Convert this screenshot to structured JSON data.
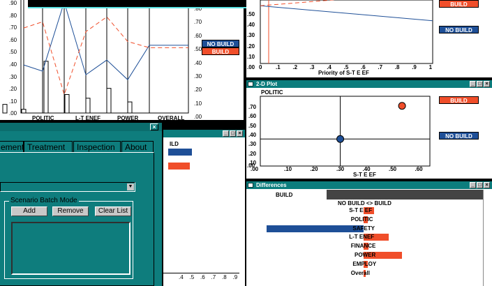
{
  "windows": {
    "top_left_chart": {
      "left_ticks": [
        ".90",
        ".80",
        ".70",
        ".60",
        ".50",
        ".40",
        ".30",
        ".20",
        ".10",
        ".00"
      ],
      "right_ticks": [
        ".80",
        ".70",
        ".60",
        ".50",
        ".40",
        ".30",
        ".20",
        ".10",
        ".00"
      ],
      "x_labels": [
        "POLITIC",
        "L-T ENEF",
        "POWER",
        "OVERALL"
      ],
      "legend": {
        "no_build": "NO BUILD",
        "build": "BUILD"
      }
    },
    "sensitivity": {
      "xlabel": "Priority of S-T E EF",
      "y_ticks": [
        ".50",
        ".40",
        ".30",
        ".20",
        ".10",
        ".00"
      ],
      "x_ticks": [
        ".1",
        ".2",
        ".3",
        ".4",
        ".5",
        ".6",
        ".7",
        ".8",
        ".9",
        "1"
      ],
      "x_zero": "0",
      "legend": {
        "build": "BUILD",
        "no_build": "NO BUILD"
      }
    },
    "plot2d": {
      "title": "2-D Plot",
      "ylabel": "POLITIC",
      "xlabel": "S-T E EF",
      "y_ticks": [
        ".70",
        ".60",
        ".50",
        ".40",
        ".30",
        ".20",
        ".10"
      ],
      "x_zero": ".00",
      "y_zero": ".00",
      "x_ticks": [
        ".10",
        ".20",
        ".30",
        ".40",
        ".50",
        ".60"
      ],
      "legend": {
        "build": "BUILD",
        "no_build": "NO BUILD"
      }
    },
    "middle_chart": {
      "header_text": "ILD",
      "x_ticks": [
        ".4",
        ".5",
        ".6",
        ".7",
        ".8",
        ".9"
      ]
    },
    "differences": {
      "title": "Differences",
      "left_header": "BUILD",
      "axis_header": "NO BUILD <> BUILD",
      "rows": [
        "S-T E EF",
        "POLITIC",
        "SAFETY",
        "L-T ENEF",
        "FINANCE",
        "POWER",
        "EMPLOY",
        "Overall"
      ]
    },
    "dialog": {
      "close_glyph": "×",
      "tabs": [
        "ement",
        "Treatment",
        "Inspection",
        "About"
      ],
      "batch_legend": "Scenario Batch Mode",
      "buttons": {
        "add": "Add",
        "remove": "Remove",
        "clear": "Clear List"
      }
    }
  },
  "chart_data": [
    {
      "type": "bar",
      "categories": [
        "POLITIC",
        "",
        "L-T ENEF",
        "",
        "POWER",
        "",
        "OVERALL"
      ],
      "series": [
        {
          "name": "NO BUILD",
          "values": [
            0.39,
            0.34,
            0.9,
            0.31,
            0.43,
            0.27,
            0.55
          ]
        },
        {
          "name": "BUILD",
          "values": [
            0.69,
            0.74,
            0.15,
            0.66,
            0.78,
            0.58,
            0.53
          ]
        }
      ],
      "ylim": [
        0,
        0.9
      ]
    },
    {
      "type": "line",
      "xlabel": "Priority of S-T E EF",
      "x": [
        0,
        1
      ],
      "series": [
        {
          "name": "NO BUILD",
          "values": [
            0.5,
            0.37
          ]
        },
        {
          "name": "BUILD",
          "values": [
            0.5,
            0.62
          ]
        }
      ],
      "xlim": [
        0,
        1
      ],
      "ylim": [
        0,
        0.55
      ]
    },
    {
      "type": "scatter",
      "xlabel": "S-T E EF",
      "ylabel": "POLITIC",
      "series": [
        {
          "name": "BUILD",
          "x": [
            0.585
          ],
          "y": [
            0.69
          ]
        },
        {
          "name": "NO BUILD",
          "x": [
            0.33
          ],
          "y": [
            0.31
          ]
        }
      ],
      "xlim": [
        0,
        0.7
      ],
      "ylim": [
        0,
        0.8
      ]
    },
    {
      "type": "bar",
      "title": "Differences",
      "categories": [
        "S-T E EF",
        "POLITIC",
        "SAFETY",
        "L-T ENEF",
        "FINANCE",
        "POWER",
        "EMPLOY",
        "Overall"
      ],
      "values": [
        0.1,
        0.04,
        -0.96,
        0.25,
        0.05,
        0.38,
        0.04,
        0.02
      ]
    }
  ],
  "colors": {
    "teal": "#0e7d7d",
    "build": "#f04e2a",
    "no_build": "#1e4f97"
  }
}
